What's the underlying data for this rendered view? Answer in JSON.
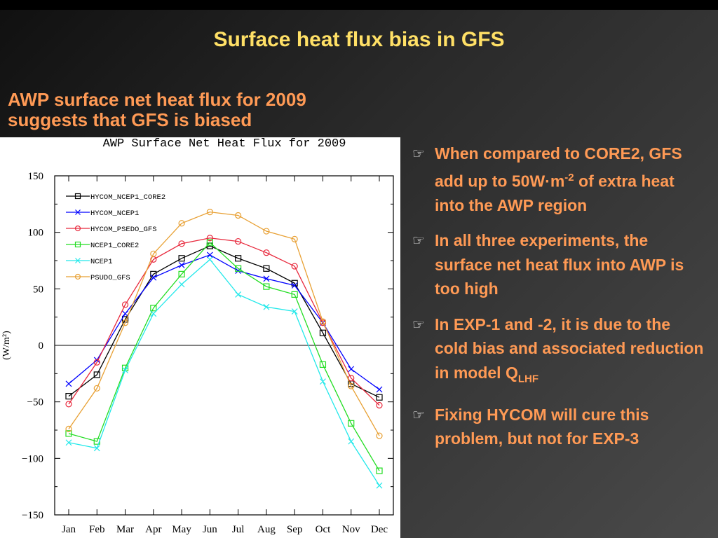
{
  "slide": {
    "title": "Surface heat flux bias in GFS",
    "subtitle_lines": [
      "AWP surface net heat flux for 2009",
      "suggests that GFS is biased"
    ]
  },
  "bullets": [
    {
      "icon": "pointing-hand-icon",
      "parts": [
        {
          "t": "When compared to CORE2, GFS add up to 50W·m"
        },
        {
          "t": "-2",
          "sup": true
        },
        {
          "t": " of extra heat into the AWP region"
        }
      ]
    },
    {
      "icon": "pointing-hand-icon",
      "parts": [
        {
          "t": "In all three experiments, the surface net heat flux into AWP is too high"
        }
      ]
    },
    {
      "icon": "pointing-hand-icon",
      "parts": [
        {
          "t": "In EXP-1 and -2, it is due to the cold bias and associated reduction in model Q"
        },
        {
          "t": "LHF",
          "sub": true
        }
      ]
    },
    {
      "icon": "pointing-hand-icon",
      "parts": [
        {
          "t": "Fixing HYCOM will cure this problem, but not for EXP-3"
        }
      ]
    }
  ],
  "chart_data": {
    "type": "line",
    "title": "AWP Surface Net Heat Flux for 2009",
    "xlabel": "",
    "ylabel": "(W/m²)",
    "categories": [
      "Jan",
      "Feb",
      "Mar",
      "Apr",
      "May",
      "Jun",
      "Jul",
      "Aug",
      "Sep",
      "Oct",
      "Nov",
      "Dec"
    ],
    "ylim": [
      -150,
      150
    ],
    "yticks": [
      150,
      100,
      50,
      0,
      -50,
      -100,
      -150
    ],
    "ytick_labels": [
      "150",
      "100",
      "50",
      "0",
      "−50",
      "−100",
      "−150"
    ],
    "zero_line": true,
    "legend_position": "upper-left",
    "series": [
      {
        "name": "HYCOM_NCEP1_CORE2",
        "color": "#000000",
        "marker": "square",
        "values": [
          -45,
          -26,
          23,
          63,
          77,
          88,
          77,
          68,
          55,
          11,
          -34,
          -46
        ]
      },
      {
        "name": "HYCOM_NCEP1",
        "color": "#0000ff",
        "marker": "x",
        "values": [
          -34,
          -13,
          28,
          60,
          71,
          80,
          66,
          59,
          53,
          20,
          -21,
          -39
        ]
      },
      {
        "name": "HYCOM_PSEDO_GFS",
        "color": "#e8283c",
        "marker": "circle",
        "values": [
          -52,
          -15,
          36,
          76,
          90,
          95,
          92,
          82,
          70,
          20,
          -29,
          -53
        ]
      },
      {
        "name": "NCEP1_CORE2",
        "color": "#22dd22",
        "marker": "square",
        "values": [
          -78,
          -85,
          -20,
          33,
          63,
          91,
          68,
          52,
          45,
          -17,
          -69,
          -111
        ]
      },
      {
        "name": "NCEP1",
        "color": "#22e8ea",
        "marker": "x",
        "values": [
          -86,
          -91,
          -22,
          28,
          54,
          76,
          45,
          34,
          30,
          -32,
          -85,
          -124
        ]
      },
      {
        "name": "PSUDO_GFS",
        "color": "#e8a033",
        "marker": "circle",
        "values": [
          -74,
          -38,
          20,
          81,
          108,
          118,
          115,
          101,
          94,
          21,
          -36,
          -80
        ]
      }
    ]
  }
}
